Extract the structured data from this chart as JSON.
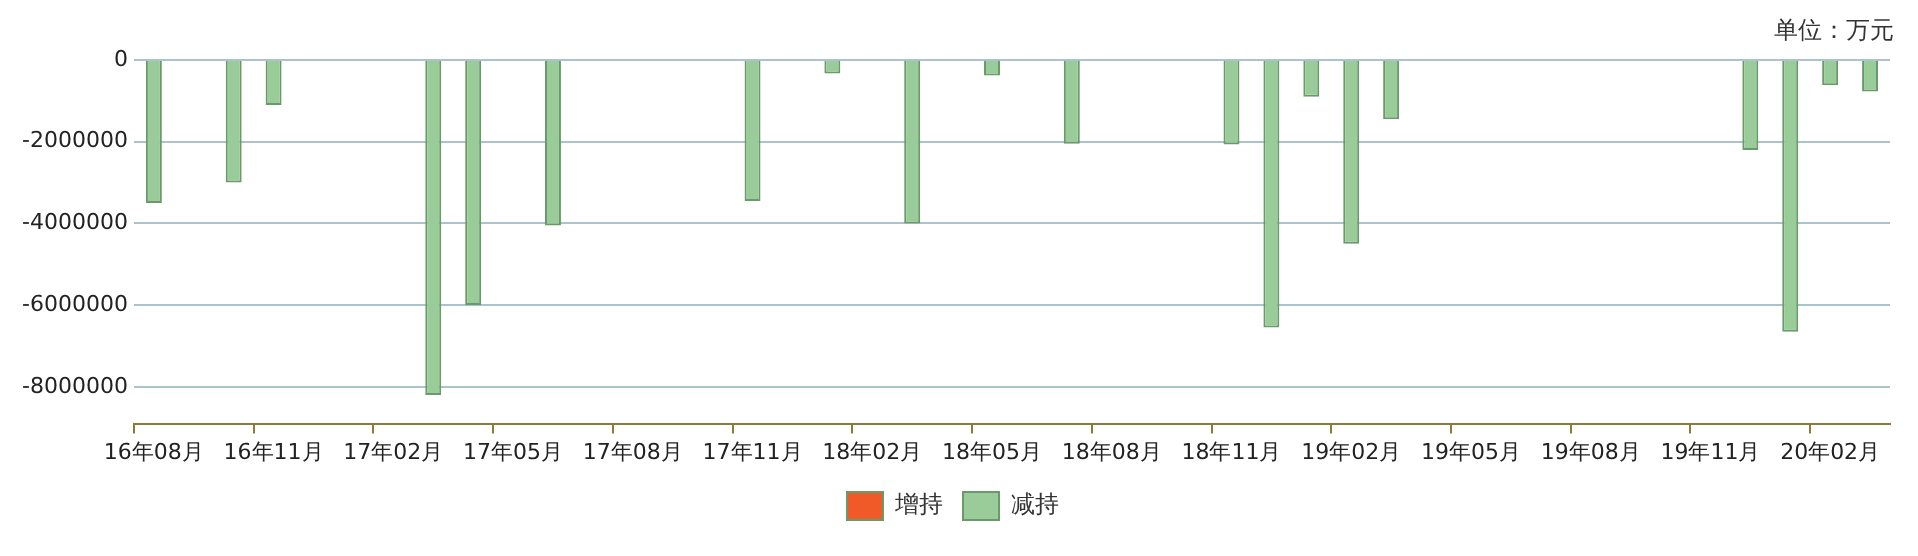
{
  "chart_data": {
    "type": "bar",
    "annotations": [
      "单位：万元"
    ],
    "categories": [
      "16年08月",
      null,
      null,
      "16年11月",
      null,
      null,
      "17年02月",
      null,
      null,
      "17年05月",
      null,
      null,
      "17年08月",
      null,
      null,
      "17年11月",
      null,
      null,
      "18年02月",
      null,
      null,
      "18年05月",
      null,
      null,
      "18年08月",
      null,
      null,
      "18年11月",
      null,
      null,
      "19年02月",
      null,
      null,
      "19年05月",
      null,
      null,
      "19年08月",
      null,
      null,
      "19年11月",
      null,
      null,
      "20年02月",
      null
    ],
    "series": [
      {
        "name": "增持",
        "color": "#f05a28",
        "values": [
          null,
          null,
          null,
          null,
          null,
          null,
          null,
          null,
          null,
          null,
          null,
          null,
          null,
          null,
          null,
          null,
          null,
          null,
          null,
          null,
          null,
          null,
          null,
          null,
          null,
          null,
          null,
          null,
          null,
          null,
          null,
          null,
          null,
          null,
          null,
          null,
          null,
          null,
          null,
          null,
          null,
          null,
          null,
          null
        ]
      },
      {
        "name": "减持",
        "color": "#99cc99",
        "values": [
          -3500000,
          null,
          -3000000,
          -1100000,
          null,
          null,
          null,
          -8200000,
          -6000000,
          null,
          -4050000,
          null,
          null,
          null,
          null,
          -3450000,
          null,
          -330000,
          null,
          -4000000,
          null,
          -380000,
          null,
          -2050000,
          null,
          null,
          null,
          -2070000,
          -6550000,
          -900000,
          -4500000,
          -1450000,
          null,
          null,
          null,
          null,
          null,
          null,
          null,
          null,
          -2200000,
          -6650000,
          -620000,
          -770000
        ]
      }
    ],
    "ylim": [
      -8900000,
      0
    ],
    "yticks": [
      0,
      -2000000,
      -4000000,
      -6000000,
      -8000000
    ],
    "grid": "y",
    "legend": "bottom"
  }
}
